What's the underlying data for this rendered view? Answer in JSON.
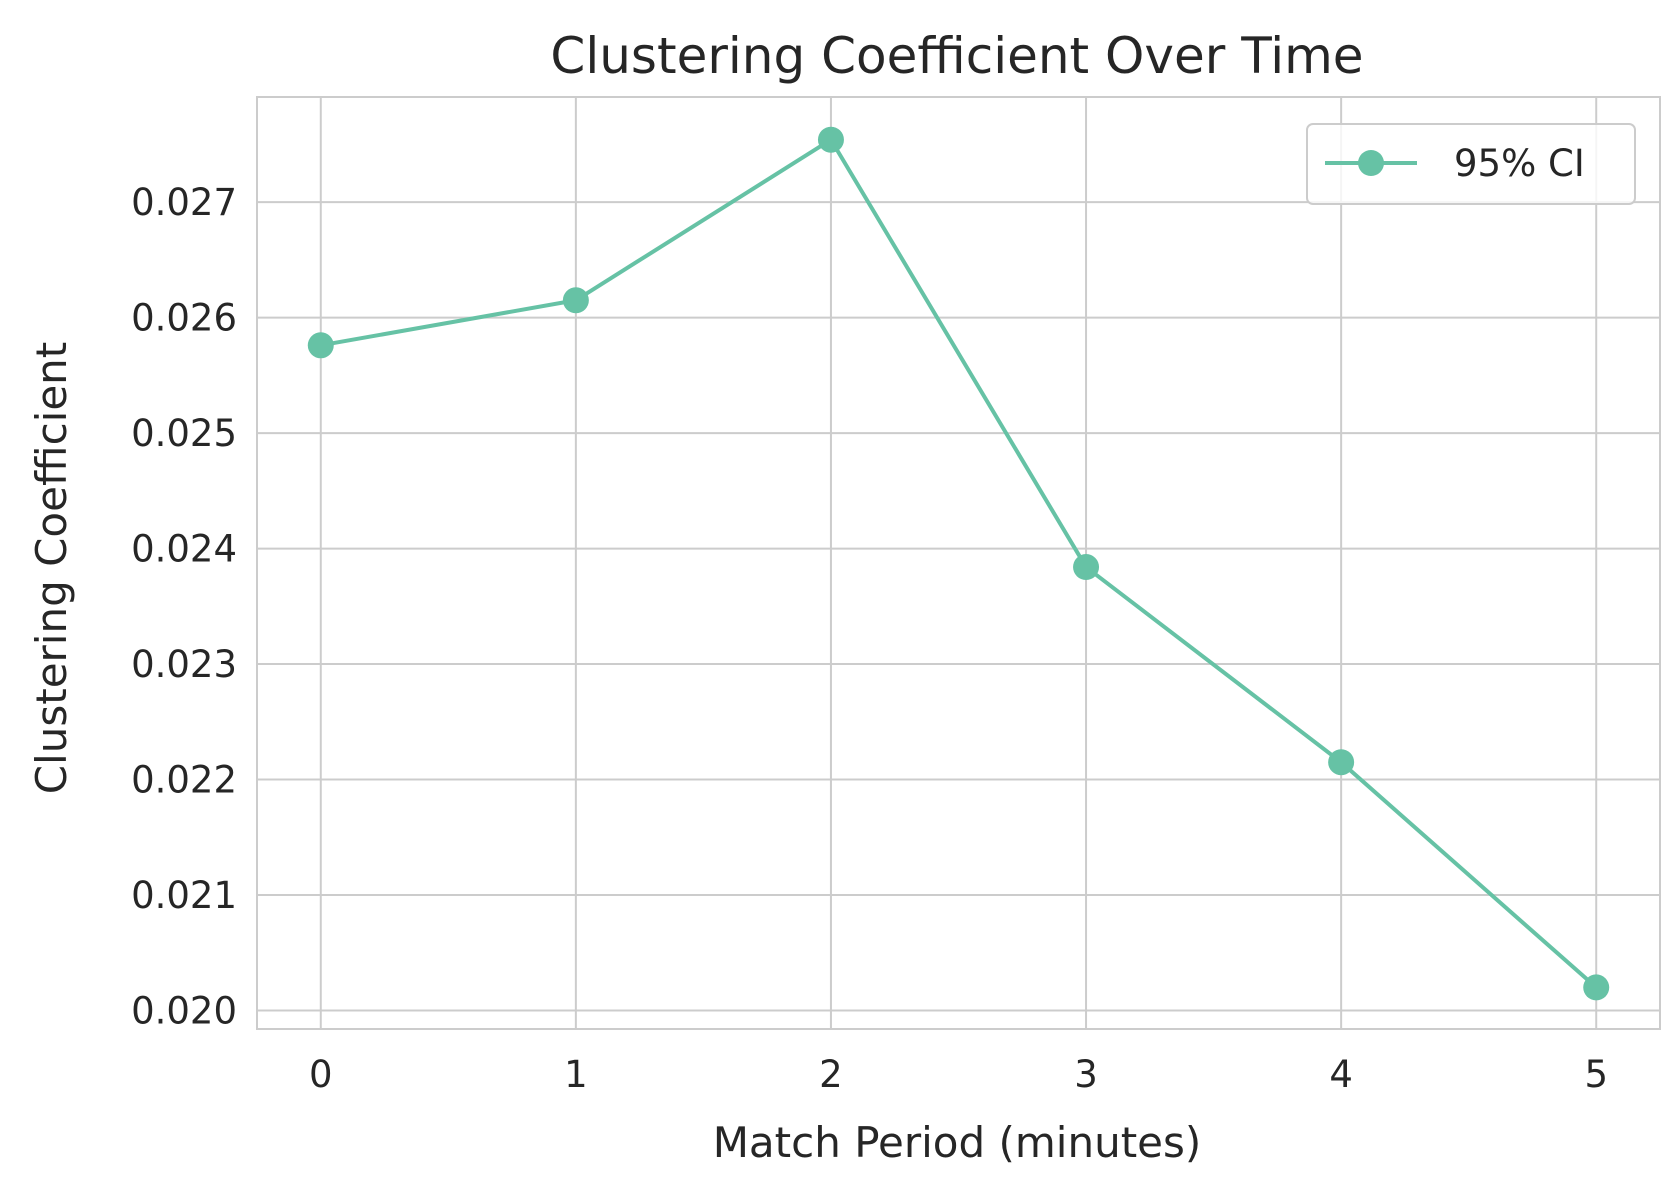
{
  "chart_data": {
    "type": "line",
    "title": "Clustering Coefficient Over Time",
    "xlabel": "Match Period (minutes)",
    "ylabel": "Clustering Coefficient",
    "x": [
      0,
      1,
      2,
      3,
      4,
      5
    ],
    "series": [
      {
        "name": "95% CI",
        "values": [
          0.02576,
          0.02615,
          0.02754,
          0.02384,
          0.02215,
          0.0202
        ],
        "color": "#66c2a5"
      }
    ],
    "xlim": [
      -0.25,
      5.25
    ],
    "ylim": [
      0.01984,
      0.02791
    ],
    "xticks": [
      0,
      1,
      2,
      3,
      4,
      5
    ],
    "xtick_labels": [
      "0",
      "1",
      "2",
      "3",
      "4",
      "5"
    ],
    "yticks": [
      0.02,
      0.021,
      0.022,
      0.023,
      0.024,
      0.025,
      0.026,
      0.027
    ],
    "ytick_labels": [
      "0.020",
      "0.021",
      "0.022",
      "0.023",
      "0.024",
      "0.025",
      "0.026",
      "0.027"
    ],
    "grid": true,
    "legend_position": "top-right"
  }
}
